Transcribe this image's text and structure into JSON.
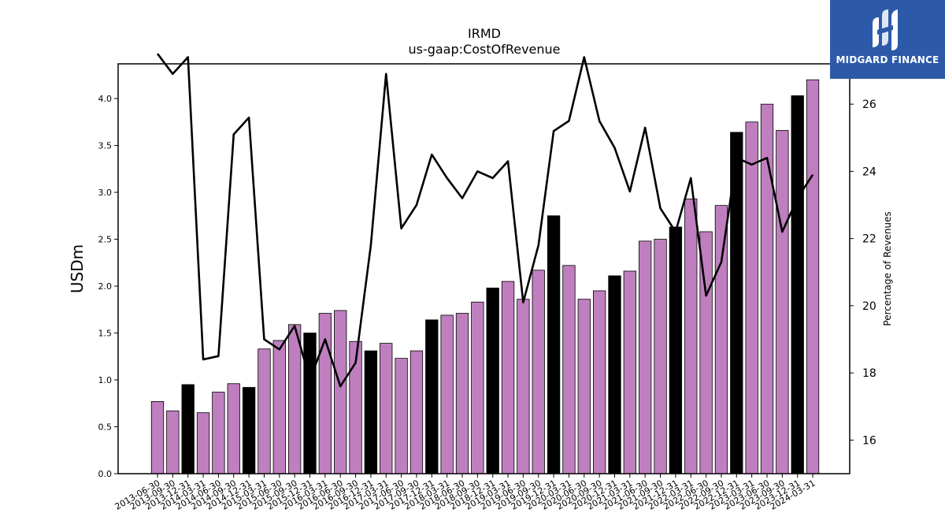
{
  "chart_data": {
    "type": "bar",
    "title": "IRMD",
    "subtitle": "us-gaap:CostOfRevenue",
    "ylabel": "USDm",
    "y2label": "Percentage of Revenues",
    "ylim": [
      0,
      4.37
    ],
    "y2lim": [
      15.0,
      27.2
    ],
    "yticks": [
      "0.0",
      "0.5",
      "1.0",
      "1.5",
      "2.0",
      "2.5",
      "3.0",
      "3.5",
      "4.0"
    ],
    "y2ticks": [
      "16",
      "18",
      "20",
      "22",
      "24",
      "26"
    ],
    "categories": [
      "2013-06-30",
      "2013-09-30",
      "2013-12-31",
      "2014-03-31",
      "2014-06-30",
      "2014-09-30",
      "2014-12-31",
      "2015-03-31",
      "2015-06-30",
      "2015-09-30",
      "2015-12-31",
      "2016-03-31",
      "2016-06-30",
      "2016-09-30",
      "2016-12-31",
      "2017-03-31",
      "2017-06-30",
      "2017-09-30",
      "2017-12-31",
      "2018-03-31",
      "2018-06-30",
      "2018-09-30",
      "2018-12-31",
      "2019-03-31",
      "2019-06-30",
      "2019-09-30",
      "2019-12-31",
      "2020-03-31",
      "2020-06-30",
      "2020-09-30",
      "2020-12-31",
      "2021-03-31",
      "2021-06-30",
      "2021-09-30",
      "2021-12-31",
      "2022-03-31",
      "2022-06-30",
      "2022-09-30",
      "2022-12-31",
      "2023-03-31",
      "2023-06-30",
      "2023-09-30",
      "2023-12-31",
      "2024-03-31"
    ],
    "series": [
      {
        "name": "",
        "kind": "bar",
        "color_quarter": "#bf7fbf",
        "color_year_end": "#000000",
        "year_end_flags": [
          0,
          0,
          1,
          0,
          0,
          0,
          1,
          0,
          0,
          0,
          1,
          0,
          0,
          0,
          1,
          0,
          0,
          0,
          1,
          0,
          0,
          0,
          1,
          0,
          0,
          0,
          1,
          0,
          0,
          0,
          1,
          0,
          0,
          0,
          1,
          0,
          0,
          0,
          1,
          0,
          0,
          0,
          1,
          0
        ],
        "values": [
          0.77,
          0.67,
          0.95,
          0.65,
          0.87,
          0.96,
          0.92,
          1.33,
          1.42,
          1.59,
          1.5,
          1.71,
          1.74,
          1.41,
          1.31,
          1.39,
          1.23,
          1.31,
          1.64,
          1.69,
          1.71,
          1.83,
          1.98,
          2.05,
          1.86,
          2.17,
          2.75,
          2.22,
          1.86,
          1.95,
          2.11,
          2.16,
          2.48,
          2.5,
          2.63,
          2.93,
          2.58,
          2.86,
          3.64,
          3.75,
          3.94,
          3.66,
          4.03,
          4.2
        ]
      },
      {
        "name": "",
        "kind": "line",
        "axis": "right",
        "color": "#000000",
        "values": [
          27.5,
          26.9,
          27.4,
          18.4,
          18.5,
          25.1,
          25.6,
          19.0,
          18.7,
          19.4,
          17.8,
          19.0,
          17.6,
          18.3,
          21.8,
          26.9,
          22.3,
          23.0,
          24.5,
          23.8,
          23.2,
          24.0,
          23.8,
          24.3,
          20.1,
          21.8,
          25.2,
          25.5,
          27.4,
          25.5,
          24.7,
          23.4,
          25.3,
          22.9,
          22.2,
          23.8,
          20.3,
          21.3,
          24.4,
          24.2,
          24.4,
          22.2,
          23.2,
          23.9
        ]
      }
    ]
  },
  "logo": {
    "text": "MIDGARD FINANCE"
  }
}
